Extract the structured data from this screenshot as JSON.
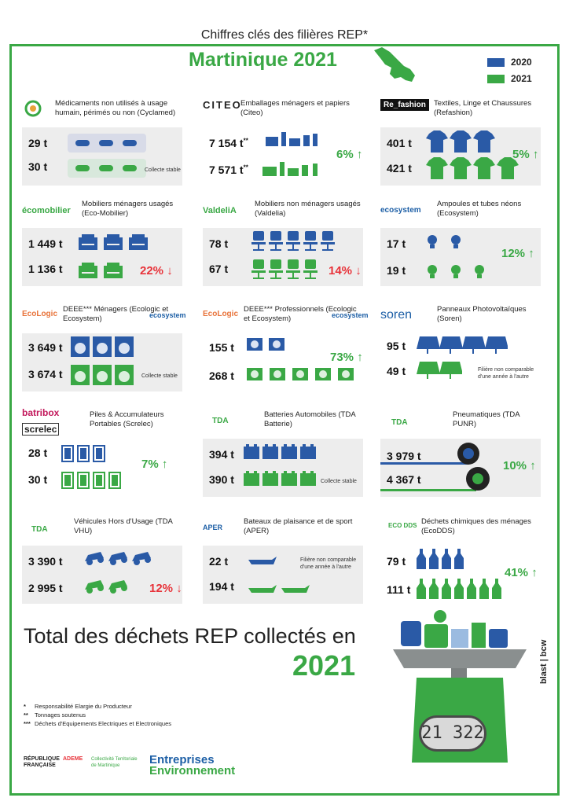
{
  "header": {
    "title": "Chiffres clés des filières REP*",
    "region": "Martinique 2021"
  },
  "legend": [
    {
      "label": "2020",
      "color": "#2a5aa6"
    },
    {
      "label": "2021",
      "color": "#3aa845"
    }
  ],
  "colors": {
    "blue": "#2a5aa6",
    "green": "#3aa845",
    "red": "#e8333a",
    "panel": "#ededed"
  },
  "cards": {
    "cyclamed": {
      "logo": "CYCLAMED",
      "title": "Médicaments non utilisés à usage humain, périmés ou non (Cyclamed)",
      "v2020": "29 t",
      "v2021": "30 t",
      "note": "Collecte stable",
      "icon": "pill-icon"
    },
    "citeo": {
      "logo": "CITEO",
      "title": "Emballages ménagers et papiers (Citeo)",
      "v2020": "7 154 t",
      "v2021": "7 571 t",
      "sup": "**",
      "change": "6%",
      "icon": "packaging-icon"
    },
    "refashion": {
      "logo": "Re_fashion",
      "title": "Textiles, Linge et Chaussures (Refashion)",
      "v2020": "401 t",
      "v2021": "421 t",
      "change": "5%",
      "icon": "tshirt-icon"
    },
    "ecomobilier": {
      "logo": "écomobilier",
      "title": "Mobiliers ménagers usagés (Eco-Mobilier)",
      "v2020": "1 449 t",
      "v2021": "1 136 t",
      "change": "22%",
      "icon": "armchair-icon"
    },
    "valdelia": {
      "logo": "ValdeliA",
      "title": "Mobiliers non ménagers usagés (Valdelia)",
      "v2020": "78 t",
      "v2021": "67 t",
      "change": "14%",
      "icon": "office-chair-icon"
    },
    "ecosystem_lamps": {
      "logo": "ecosystem",
      "title": "Ampoules et tubes néons (Ecosystem)",
      "v2020": "17 t",
      "v2021": "19 t",
      "change": "12%",
      "icon": "bulb-icon"
    },
    "deee_menagers": {
      "logo": "EcoLogic",
      "logo2": "ecosystem",
      "title": "DEEE*** Ménagers (Ecologic et Ecosystem)",
      "v2020": "3 649 t",
      "v2021": "3 674 t",
      "note": "Collecte stable",
      "icon": "washing-machine-icon"
    },
    "deee_pros": {
      "logo": "EcoLogic",
      "logo2": "ecosystem",
      "title": "DEEE*** Professionnels (Ecologic et Ecosystem)",
      "v2020": "155 t",
      "v2021": "268 t",
      "change": "73%",
      "icon": "fan-icon"
    },
    "soren": {
      "logo": "soren",
      "title": "Panneaux Photovoltaïques (Soren)",
      "v2020": "95 t",
      "v2021": "49 t",
      "note": "Filière non comparable d'une année à l'autre",
      "icon": "solar-panel-icon"
    },
    "screlec": {
      "logo": "batribox",
      "logo2": "screlec",
      "title": "Piles & Accumulateurs Portables (Screlec)",
      "v2020": "28 t",
      "v2021": "30 t",
      "change": "7%",
      "icon": "battery-icon"
    },
    "tda_batterie": {
      "logo": "TDA",
      "title": "Batteries Automobiles (TDA Batterie)",
      "v2020": "394 t",
      "v2021": "390 t",
      "note": "Collecte stable",
      "icon": "car-battery-icon"
    },
    "tda_punr": {
      "logo": "TDA",
      "title": "Pneumatiques (TDA PUNR)",
      "v2020": "3 979 t",
      "v2021": "4 367 t",
      "change": "10%",
      "icon": "tire-icon"
    },
    "tda_vhu": {
      "logo": "TDA",
      "title": "Véhicules Hors d'Usage (TDA VHU)",
      "v2020": "3 390 t",
      "v2021": "2 995 t",
      "change": "12%",
      "icon": "car-wreck-icon"
    },
    "aper": {
      "logo": "APER",
      "title": "Bateaux de plaisance et de sport (APER)",
      "v2020": "22 t",
      "v2021": "194 t",
      "note": "Filière non comparable d'une année à l'autre",
      "icon": "boat-icon"
    },
    "ecodds": {
      "logo": "ECO DDS",
      "title": "Déchets chimiques des ménages (EcoDDS)",
      "v2020": "79 t",
      "v2021": "111 t",
      "change": "41%",
      "icon": "chemical-bottle-icon"
    }
  },
  "total": {
    "title": "Total des déchets REP collectés en",
    "year": "2021",
    "value": "21 322"
  },
  "footnotes": [
    {
      "mark": "*",
      "text": "Responsabilité Elargie du Producteur"
    },
    {
      "mark": "**",
      "text": "Tonnages soutenus"
    },
    {
      "mark": "***",
      "text": "Déchets d'Equipements Electriques et Electroniques"
    }
  ],
  "partners": {
    "rf": "RÉPUBLIQUE FRANÇAISE",
    "ademe": "ADEME",
    "ctm": "Collectivité Territoriale de Martinique",
    "ee1": "Entreprises",
    "ee2": "Environnement",
    "credit": "blast",
    "credit2": "bcw"
  }
}
